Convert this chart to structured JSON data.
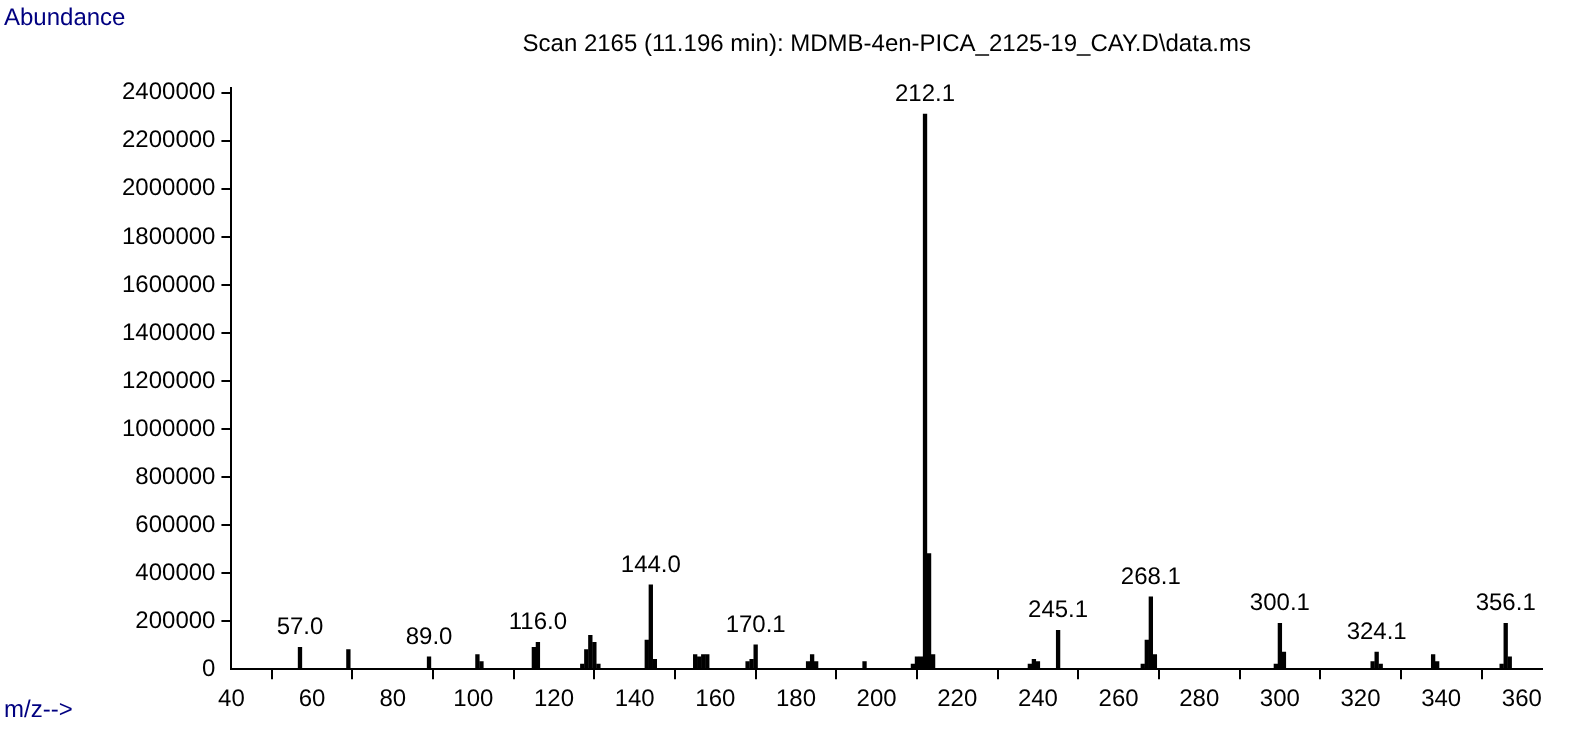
{
  "chart_data": {
    "type": "bar",
    "title": "Scan 2165 (11.196 min): MDMB-4en-PICA_2125-19_CAY.D\\data.ms",
    "xlabel": "m/z-->",
    "ylabel": "Abundance",
    "x": [
      57,
      69,
      89,
      101,
      102,
      115,
      116,
      127,
      128,
      129,
      130,
      131,
      143,
      144,
      145,
      155,
      156,
      157,
      158,
      168,
      169,
      170,
      183,
      184,
      185,
      197,
      209,
      210,
      211,
      212,
      213,
      214,
      238,
      239,
      240,
      245,
      266,
      267,
      268,
      269,
      299,
      300,
      301,
      323,
      324,
      325,
      338,
      339,
      355,
      356,
      357
    ],
    "series": [
      {
        "color": "#000000",
        "values": [
          90000,
          80000,
          50000,
          60000,
          30000,
          90000,
          110000,
          20000,
          80000,
          140000,
          110000,
          20000,
          120000,
          350000,
          40000,
          60000,
          50000,
          60000,
          60000,
          30000,
          40000,
          100000,
          30000,
          60000,
          30000,
          30000,
          20000,
          50000,
          50000,
          2310000,
          480000,
          60000,
          20000,
          40000,
          30000,
          160000,
          20000,
          120000,
          300000,
          60000,
          20000,
          190000,
          70000,
          30000,
          70000,
          20000,
          60000,
          30000,
          20000,
          190000,
          50000
        ]
      }
    ],
    "xlim": [
      40,
      365
    ],
    "xticks": [
      40,
      60,
      80,
      100,
      120,
      140,
      160,
      180,
      200,
      220,
      240,
      260,
      280,
      300,
      320,
      340,
      360
    ],
    "ylim": [
      0,
      2420000
    ],
    "yticks": [
      0,
      200000,
      400000,
      600000,
      800000,
      1000000,
      1200000,
      1400000,
      1600000,
      1800000,
      2000000,
      2200000,
      2400000
    ],
    "grid": false,
    "legend": false,
    "annotations": [
      {
        "text": "57.0",
        "x": 57,
        "y": 90000
      },
      {
        "text": "89.0",
        "x": 89,
        "y": 50000
      },
      {
        "text": "116.0",
        "x": 116,
        "y": 110000
      },
      {
        "text": "144.0",
        "x": 144,
        "y": 350000
      },
      {
        "text": "170.1",
        "x": 170,
        "y": 100000
      },
      {
        "text": "212.1",
        "x": 212,
        "y": 2310000
      },
      {
        "text": "245.1",
        "x": 245,
        "y": 160000
      },
      {
        "text": "268.1",
        "x": 268,
        "y": 300000
      },
      {
        "text": "300.1",
        "x": 300,
        "y": 190000
      },
      {
        "text": "324.1",
        "x": 324,
        "y": 70000
      },
      {
        "text": "356.1",
        "x": 356,
        "y": 190000
      }
    ]
  }
}
